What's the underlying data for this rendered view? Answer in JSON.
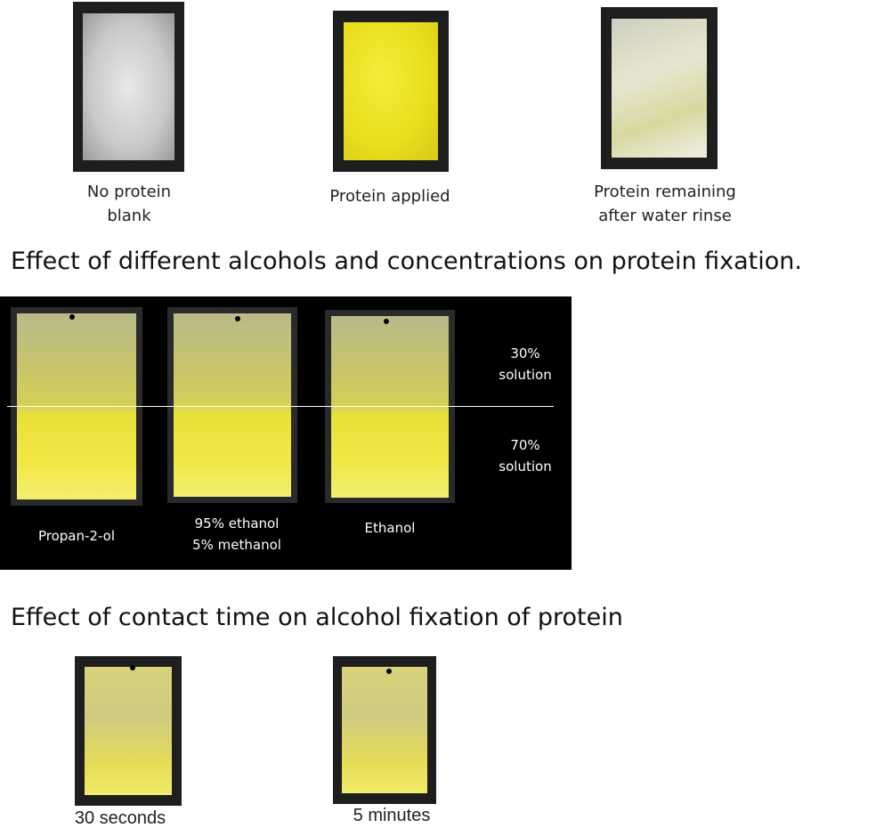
{
  "top": {
    "panels": [
      {
        "label_lines": [
          "No protein",
          "blank"
        ]
      },
      {
        "label_lines": [
          "Protein applied"
        ]
      },
      {
        "label_lines": [
          "Protein remaining",
          "after water rinse"
        ]
      }
    ]
  },
  "alcohols": {
    "title": "Effect of different alcohols and concentrations on protein fixation.",
    "concentrations": [
      [
        "30%",
        "solution"
      ],
      [
        "70%",
        "solution"
      ]
    ],
    "panels": [
      {
        "label_lines": [
          "Propan-2-ol"
        ]
      },
      {
        "label_lines": [
          "95% ethanol",
          "5% methanol"
        ]
      },
      {
        "label_lines": [
          "Ethanol"
        ]
      }
    ]
  },
  "contact_time": {
    "title": "Effect of contact time on alcohol fixation of protein",
    "panels": [
      {
        "label_lines": [
          "30 seconds"
        ]
      },
      {
        "label_lines": [
          "5 minutes"
        ]
      }
    ]
  }
}
